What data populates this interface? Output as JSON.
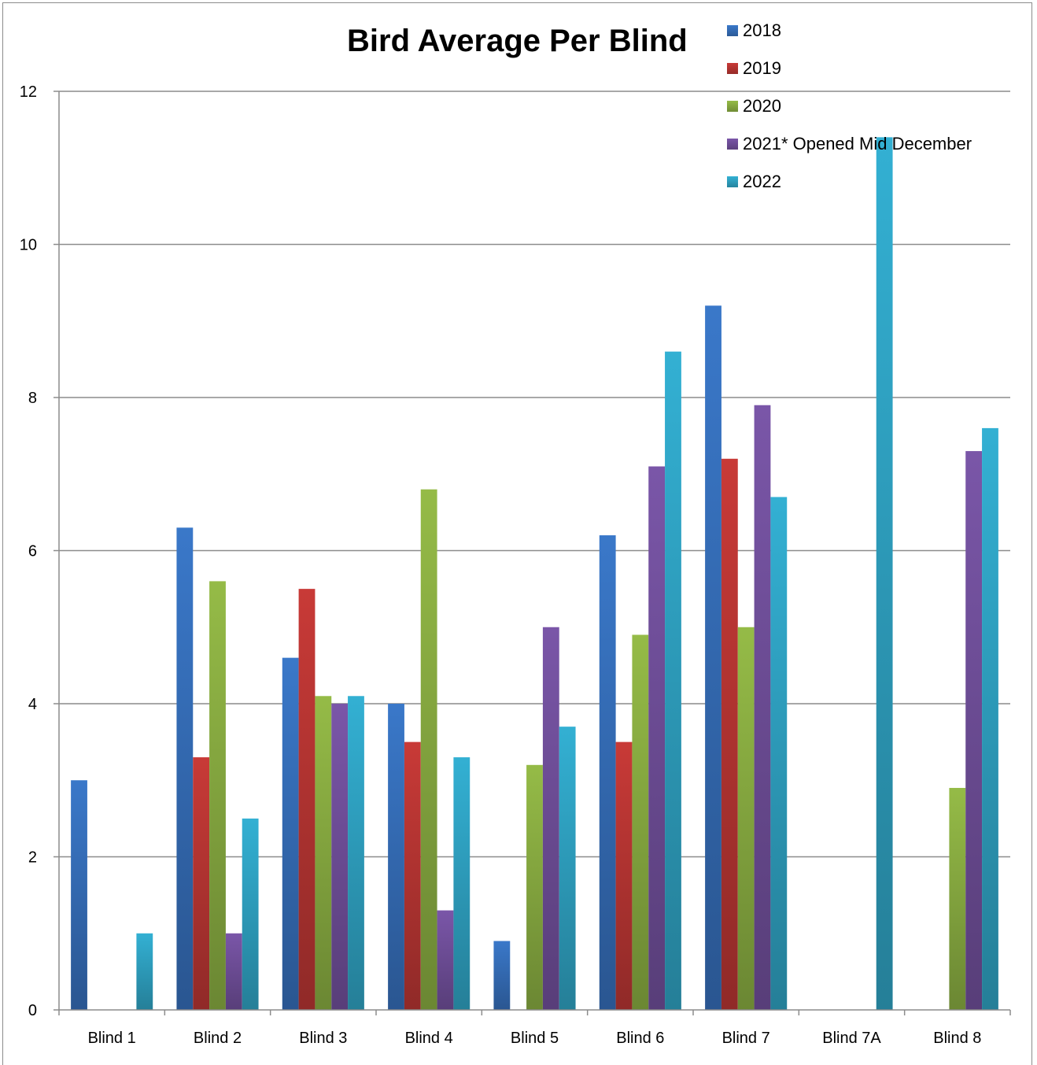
{
  "chart_data": {
    "type": "bar",
    "title": "Bird Average Per Blind",
    "xlabel": "",
    "ylabel": "",
    "ylim": [
      0,
      12
    ],
    "yticks": [
      0,
      2,
      4,
      6,
      8,
      10,
      12
    ],
    "grid": true,
    "legend_position": "top-right",
    "categories": [
      "Blind 1",
      "Blind 2",
      "Blind 3",
      "Blind 4",
      "Blind 5",
      "Blind 6",
      "Blind 7",
      "Blind 7A",
      "Blind 8"
    ],
    "series": [
      {
        "name": "2018",
        "color": "#3a78c9",
        "values": [
          3.0,
          6.3,
          4.6,
          4.0,
          0.9,
          6.2,
          9.2,
          0,
          0
        ]
      },
      {
        "name": "2019",
        "color": "#c83a37",
        "values": [
          0,
          3.3,
          5.5,
          3.5,
          0,
          3.5,
          7.2,
          0,
          0
        ]
      },
      {
        "name": "2020",
        "color": "#95bb47",
        "values": [
          0,
          5.6,
          4.1,
          6.8,
          3.2,
          4.9,
          5.0,
          0,
          2.9
        ]
      },
      {
        "name": "2021* Opened Mid December",
        "color": "#7a56a8",
        "values": [
          0,
          1.0,
          4.0,
          1.3,
          5.0,
          7.1,
          7.9,
          0,
          7.3
        ]
      },
      {
        "name": "2022",
        "color": "#33b0d3",
        "values": [
          1.0,
          2.5,
          4.1,
          3.3,
          3.7,
          8.6,
          6.7,
          11.4,
          7.6
        ]
      }
    ]
  }
}
